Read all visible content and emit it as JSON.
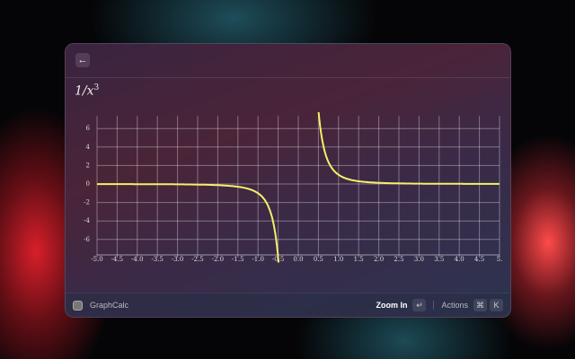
{
  "header": {
    "back_icon": "arrow-left-icon"
  },
  "graph": {
    "expression": "1/x",
    "exponent": "3",
    "curve_color": "#f5f06a",
    "x_ticks": [
      "-5.0",
      "-4.5",
      "-4.0",
      "-3.5",
      "-3.0",
      "-2.5",
      "-2.0",
      "-1.5",
      "-1.0",
      "-0.5",
      "0.0",
      "0.5",
      "1.0",
      "1.5",
      "2.0",
      "2.5",
      "3.0",
      "3.5",
      "4.0",
      "4.5",
      "5."
    ],
    "y_ticks": [
      "6",
      "4",
      "2",
      "0",
      "-2",
      "-4",
      "-6"
    ]
  },
  "footer": {
    "app_name": "GraphCalc",
    "primary_action": "Zoom In",
    "primary_key": "↵",
    "actions_label": "Actions",
    "actions_keys": [
      "⌘",
      "K"
    ]
  }
}
